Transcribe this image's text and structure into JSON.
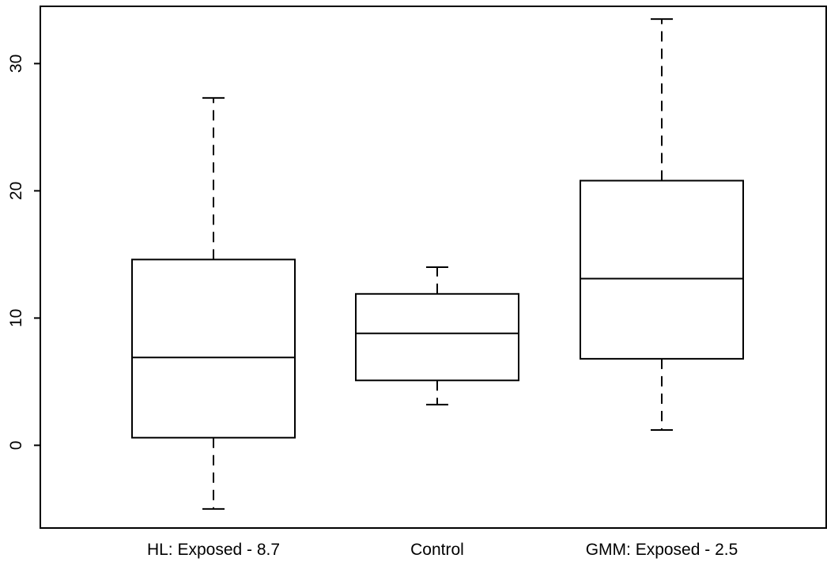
{
  "chart_data": {
    "type": "boxplot",
    "title": "",
    "xlabel": "",
    "ylabel": "",
    "ylim": [
      -6.5,
      34.5
    ],
    "yticks": [
      0,
      10,
      20,
      30
    ],
    "y_tick_labels": [
      "0",
      "10",
      "20",
      "30"
    ],
    "grid": false,
    "categories": [
      "HL: Exposed - 8.7",
      "Control",
      "GMM: Exposed - 2.5"
    ],
    "boxes": [
      {
        "category": "HL: Exposed - 8.7",
        "whisker_low": -5.0,
        "q1": 0.6,
        "median": 6.9,
        "q3": 14.6,
        "whisker_high": 27.3
      },
      {
        "category": "Control",
        "whisker_low": 3.2,
        "q1": 5.1,
        "median": 8.8,
        "q3": 11.9,
        "whisker_high": 14.0
      },
      {
        "category": "GMM: Exposed - 2.5",
        "whisker_low": 1.2,
        "q1": 6.8,
        "median": 13.1,
        "q3": 20.8,
        "whisker_high": 33.5
      }
    ],
    "colors": {
      "box_stroke": "#000000",
      "box_fill": "#ffffff",
      "background": "#ffffff"
    }
  }
}
